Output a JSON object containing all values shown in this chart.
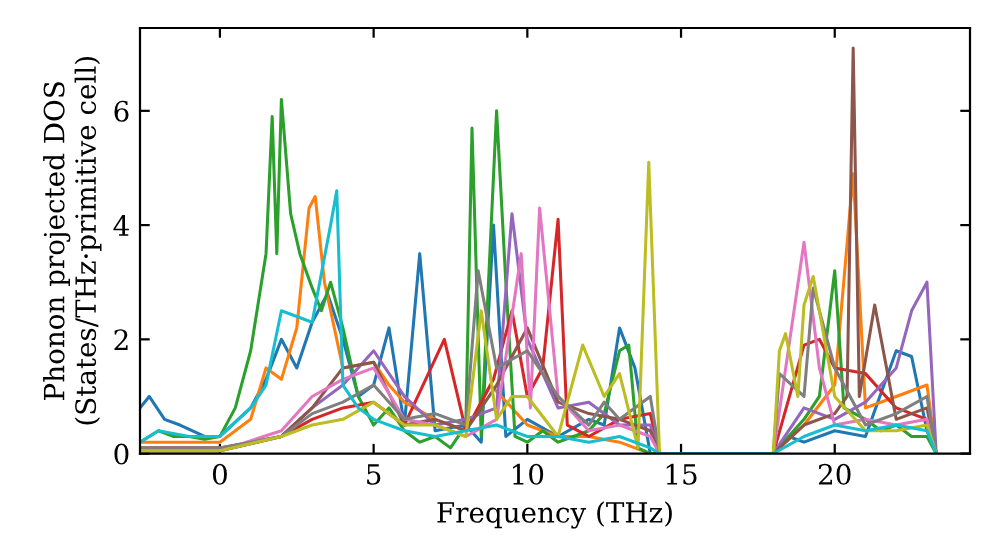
{
  "chart_data": {
    "type": "line",
    "xlabel": "Frequency (THz)",
    "ylabel": "Phonon projected DOS\n(States/THz·primitive cell)",
    "xlim": [
      -2.6,
      24.4
    ],
    "ylim": [
      0,
      7.45
    ],
    "xticks": [
      0,
      5,
      10,
      15,
      20
    ],
    "yticks": [
      0,
      2,
      4,
      6
    ],
    "grid": false,
    "legend": false,
    "marker": "none",
    "line_style": "solid",
    "series": [
      {
        "color": "#1f77b4",
        "x": [
          -2.6,
          -2.3,
          -1.8,
          -1.3,
          -0.5,
          0,
          1,
          1.5,
          2,
          2.5,
          3,
          3.5,
          4,
          4.5,
          5,
          5.5,
          6,
          6.5,
          7,
          8,
          8.5,
          8.9,
          9.3,
          10,
          11,
          12,
          12.5,
          13,
          13.5,
          14,
          18,
          18.5,
          19,
          20,
          21,
          22,
          22.5,
          23,
          23.3
        ],
        "values": [
          0.8,
          1.0,
          0.6,
          0.5,
          0.3,
          0.3,
          0.8,
          1.3,
          2.0,
          1.5,
          2.3,
          2.8,
          2.0,
          1.0,
          1.2,
          2.2,
          0.5,
          3.5,
          0.4,
          0.5,
          0.2,
          4.0,
          0.3,
          0.6,
          0.3,
          0.6,
          0.5,
          2.2,
          1.5,
          0,
          0,
          0.3,
          0.2,
          0.4,
          0.3,
          1.8,
          1.7,
          0.4,
          0
        ]
      },
      {
        "color": "#ff7f0e",
        "x": [
          -2.6,
          -1,
          0,
          1,
          1.5,
          2,
          2.5,
          2.9,
          3.1,
          3.4,
          4,
          5,
          5.5,
          6,
          7,
          8,
          8.8,
          9.5,
          10,
          11,
          12,
          13,
          14,
          18,
          19,
          20,
          20.6,
          21,
          22,
          23,
          23.3
        ],
        "values": [
          0.2,
          0.2,
          0.2,
          0.6,
          1.5,
          1.3,
          2.2,
          4.3,
          4.5,
          3.0,
          1.5,
          1.6,
          1.2,
          0.9,
          0.6,
          0.4,
          1.2,
          0.8,
          0.5,
          0.3,
          0.3,
          0.2,
          0,
          0,
          0.5,
          1.2,
          4.9,
          0.8,
          1.0,
          1.2,
          0
        ]
      },
      {
        "color": "#2ca02c",
        "x": [
          -2.6,
          -2,
          -1.5,
          -1,
          -0.5,
          0,
          0.5,
          1,
          1.5,
          1.7,
          1.85,
          2.0,
          2.3,
          2.6,
          3,
          3.3,
          3.6,
          4,
          4.5,
          5,
          5.5,
          6,
          6.5,
          7,
          7.5,
          8,
          8.2,
          8.5,
          9,
          9.3,
          9.6,
          10,
          10.5,
          11,
          11.5,
          12,
          12.5,
          13,
          13.3,
          13.6,
          14,
          18,
          18.5,
          19,
          19.5,
          20,
          20.3,
          21,
          21.5,
          22,
          22.5,
          23,
          23.3
        ],
        "values": [
          0.2,
          0.4,
          0.3,
          0.3,
          0.25,
          0.3,
          0.8,
          1.8,
          3.5,
          5.9,
          3.5,
          6.2,
          4.2,
          3.5,
          2.9,
          2.5,
          3.0,
          2.2,
          1.0,
          0.5,
          0.8,
          0.4,
          0.2,
          0.3,
          0.1,
          0.5,
          5.7,
          0.3,
          6.0,
          3.0,
          0.3,
          0.2,
          0.4,
          0.2,
          0.3,
          0.4,
          0.7,
          1.8,
          1.9,
          0.1,
          0,
          0,
          0.3,
          0.6,
          1.0,
          3.2,
          0.8,
          0.6,
          0.4,
          0.5,
          0.3,
          0.3,
          0
        ]
      },
      {
        "color": "#d62728",
        "x": [
          -2.6,
          0,
          2,
          3,
          4,
          5,
          6,
          7.3,
          8,
          8.9,
          9.5,
          10,
          10.5,
          11,
          11.3,
          12,
          13,
          14,
          14.3,
          18,
          19,
          19.5,
          20,
          21,
          22,
          23,
          23.3
        ],
        "values": [
          0.1,
          0.1,
          0.3,
          0.6,
          0.8,
          0.9,
          0.5,
          2.0,
          0.4,
          1.3,
          2.5,
          1.0,
          1.5,
          4.1,
          0.5,
          0.3,
          0.6,
          0.7,
          0,
          0,
          1.9,
          2.0,
          1.5,
          1.4,
          0.8,
          0.6,
          0
        ]
      },
      {
        "color": "#9467bd",
        "x": [
          -2.6,
          0,
          2,
          3,
          4,
          5,
          6,
          7,
          8,
          9,
          9.5,
          10,
          11,
          12,
          13,
          14,
          14.3,
          18,
          19,
          20,
          21,
          22,
          22.5,
          23,
          23.3
        ],
        "values": [
          0.05,
          0.05,
          0.3,
          0.8,
          1.2,
          1.8,
          1.0,
          0.5,
          0.6,
          0.8,
          4.2,
          2.0,
          0.8,
          0.9,
          0.5,
          0.5,
          0,
          0,
          0.8,
          0.6,
          0.9,
          1.5,
          2.5,
          3.0,
          0
        ]
      },
      {
        "color": "#8c564b",
        "x": [
          -2.6,
          0,
          2,
          3,
          4,
          5,
          6,
          7,
          8,
          9,
          10,
          11,
          12,
          13,
          14,
          14.3,
          18,
          19,
          20,
          20.4,
          20.6,
          20.8,
          21.3,
          22,
          23,
          23.3
        ],
        "values": [
          0.05,
          0.05,
          0.3,
          0.8,
          1.5,
          1.6,
          0.5,
          0.6,
          0.4,
          1.2,
          2.2,
          0.9,
          0.7,
          0.6,
          0.4,
          0,
          0,
          0.5,
          0.7,
          1.0,
          7.1,
          1.0,
          2.6,
          0.6,
          0.8,
          0
        ]
      },
      {
        "color": "#e377c2",
        "x": [
          -2.6,
          0,
          2,
          3,
          4,
          5,
          6,
          7,
          8,
          9,
          9.8,
          10.1,
          10.4,
          11,
          12,
          13,
          14,
          14.3,
          18,
          19,
          19.5,
          20,
          21,
          22,
          23,
          23.3
        ],
        "values": [
          0.05,
          0.05,
          0.4,
          1.0,
          1.3,
          1.5,
          0.6,
          0.5,
          0.3,
          0.6,
          3.5,
          0.8,
          4.3,
          1.0,
          0.4,
          0.5,
          0.3,
          0,
          0,
          3.7,
          1.5,
          0.5,
          0.6,
          0.5,
          0.6,
          0
        ]
      },
      {
        "color": "#7f7f7f",
        "x": [
          -2.6,
          0,
          2,
          3,
          4,
          5,
          6,
          7,
          8,
          8.4,
          9,
          10,
          11,
          12,
          12.5,
          13,
          14,
          14.3,
          18,
          18.2,
          19,
          19.3,
          20,
          21,
          22,
          23,
          23.3
        ],
        "values": [
          0.1,
          0.1,
          0.3,
          0.7,
          0.9,
          1.2,
          0.6,
          0.7,
          0.5,
          3.2,
          1.5,
          1.8,
          1.0,
          0.5,
          0.9,
          0.6,
          1.0,
          0,
          0,
          1.4,
          1.0,
          2.9,
          1.5,
          0.5,
          0.7,
          1.0,
          0
        ]
      },
      {
        "color": "#bcbd22",
        "x": [
          -2.6,
          0,
          2,
          3,
          4,
          5,
          6,
          7,
          8,
          8.5,
          9,
          9.5,
          10,
          11,
          11.8,
          12.5,
          13,
          13.6,
          13.95,
          14.3,
          18,
          18.2,
          18.4,
          18.8,
          19,
          19.3,
          20,
          21,
          22,
          23,
          23.3
        ],
        "values": [
          0.05,
          0.05,
          0.3,
          0.5,
          0.6,
          0.9,
          0.5,
          0.5,
          0.3,
          2.5,
          0.6,
          1.0,
          1.0,
          0.3,
          1.9,
          1.0,
          1.4,
          0.1,
          5.1,
          0,
          0,
          1.8,
          2.1,
          1.0,
          2.6,
          3.1,
          1.0,
          0.4,
          0.4,
          0.5,
          0
        ]
      },
      {
        "color": "#17becf",
        "x": [
          -2.6,
          -2,
          -1,
          0,
          1,
          1.5,
          2,
          2.5,
          3,
          3.6,
          3.8,
          4,
          4.5,
          5,
          6,
          7,
          8,
          9,
          10,
          11,
          12,
          13,
          14,
          14.3,
          18,
          19,
          20,
          21,
          22,
          23,
          23.3
        ],
        "values": [
          0.2,
          0.4,
          0.3,
          0.3,
          0.8,
          1.2,
          2.5,
          2.4,
          2.3,
          4.0,
          4.6,
          1.2,
          0.8,
          0.6,
          0.4,
          0.3,
          0.4,
          0.5,
          0.3,
          0.3,
          0.2,
          0.3,
          0.1,
          0,
          0,
          0.3,
          0.5,
          0.4,
          0.5,
          0.4,
          0
        ]
      }
    ]
  }
}
